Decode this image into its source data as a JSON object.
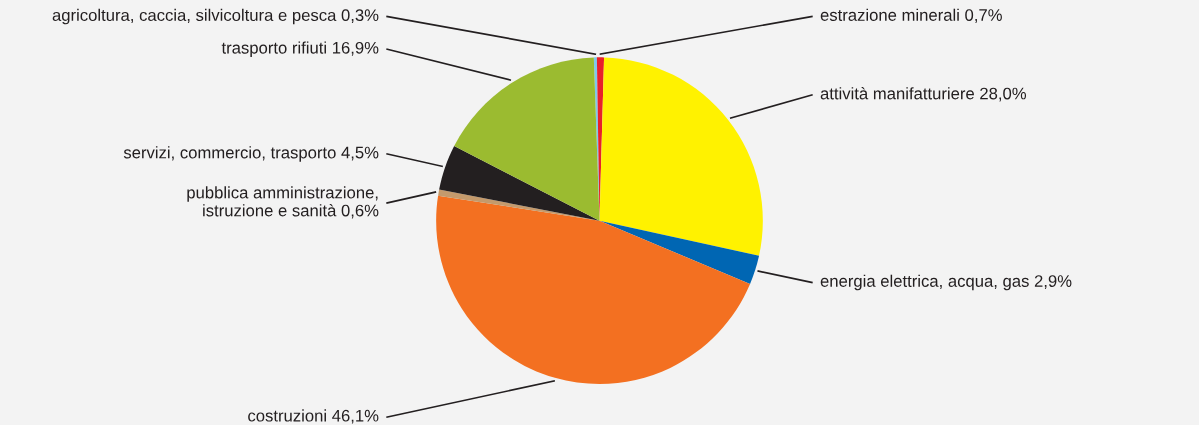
{
  "chart_data": {
    "type": "pie",
    "categories": [
      "agricoltura, caccia, silvicoltura e pesca",
      "estrazione minerali",
      "attività manifatturiere",
      "energia elettrica, acqua, gas",
      "costruzioni",
      "pubblica amministrazione,\nistruzione e sanità",
      "servizi, commercio, trasporto",
      "trasporto rifiuti"
    ],
    "values": [
      0.3,
      0.7,
      28.0,
      2.9,
      46.1,
      0.6,
      4.5,
      16.9
    ],
    "value_labels": [
      "0,3%",
      "0,7%",
      "28,0%",
      "2,9%",
      "46,1%",
      "0,6%",
      "4,5%",
      "16,9%"
    ],
    "colors": [
      "#7ec8ee",
      "#e8202a",
      "#fff200",
      "#0066b3",
      "#f37021",
      "#c49a6c",
      "#231f20",
      "#9bbb30"
    ]
  }
}
